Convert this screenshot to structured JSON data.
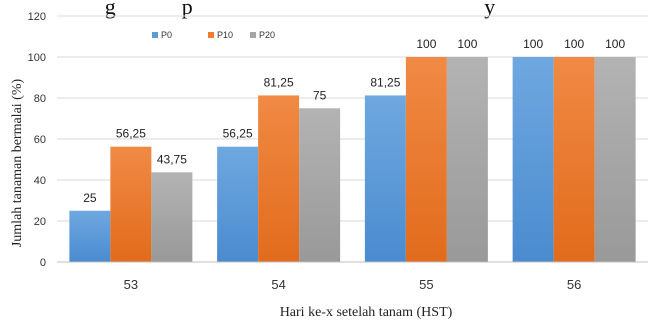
{
  "chart_data": {
    "type": "bar",
    "title_fragment": "g            p                                                     y",
    "xlabel": "Hari ke-x setelah tanam (HST)",
    "ylabel": "Jumlah tanaman bermalai (%)",
    "categories": [
      "53",
      "54",
      "55",
      "56"
    ],
    "ylim": [
      0,
      120
    ],
    "yticks": [
      "0",
      "20",
      "40",
      "60",
      "80",
      "100",
      "120"
    ],
    "grid": true,
    "legend_position": "top-left",
    "series": [
      {
        "name": "P0",
        "color": "#5b9bd5",
        "values": [
          25,
          56.25,
          81.25,
          100
        ],
        "labels": [
          "25",
          "56,25",
          "81,25",
          "100"
        ]
      },
      {
        "name": "P10",
        "color": "#ed7d31",
        "values": [
          56.25,
          81.25,
          100,
          100
        ],
        "labels": [
          "56,25",
          "81,25",
          "100",
          "100"
        ]
      },
      {
        "name": "P20",
        "color": "#a5a5a5",
        "values": [
          43.75,
          75,
          100,
          100
        ],
        "labels": [
          "43,75",
          "75",
          "100",
          "100"
        ]
      }
    ]
  }
}
